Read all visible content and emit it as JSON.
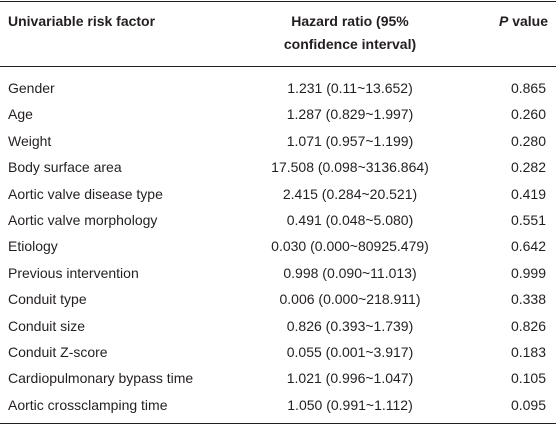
{
  "table": {
    "header": {
      "factor": "Univariable risk factor",
      "hazard": [
        "Hazard ratio (95%",
        "confidence interval)"
      ],
      "p_value": [
        "P",
        "value"
      ]
    },
    "rows": [
      [
        "Gender",
        "1.231 (0.11~13.652)",
        "0.865"
      ],
      [
        "Age",
        "1.287 (0.829~1.997)",
        "0.260"
      ],
      [
        "Weight",
        "1.071 (0.957~1.199)",
        "0.280"
      ],
      [
        "Body surface area",
        "17.508 (0.098~3136.864)",
        "0.282"
      ],
      [
        "Aortic valve disease type",
        "2.415 (0.284~20.521)",
        "0.419"
      ],
      [
        "Aortic valve morphology",
        "0.491 (0.048~5.080)",
        "0.551"
      ],
      [
        "Etiology",
        "0.030 (0.000~80925.479)",
        "0.642"
      ],
      [
        "Previous intervention",
        "0.998 (0.090~11.013)",
        "0.999"
      ],
      [
        "Conduit type",
        "0.006 (0.000~218.911)",
        "0.338"
      ],
      [
        "Conduit size",
        "0.826 (0.393~1.739)",
        "0.826"
      ],
      [
        "Conduit Z-score",
        "0.055 (0.001~3.917)",
        "0.183"
      ],
      [
        "Cardiopulmonary bypass time",
        "1.021 (0.996~1.047)",
        "0.105"
      ],
      [
        "Aortic crossclamping time",
        "1.050 (0.991~1.112)",
        "0.095"
      ]
    ]
  }
}
